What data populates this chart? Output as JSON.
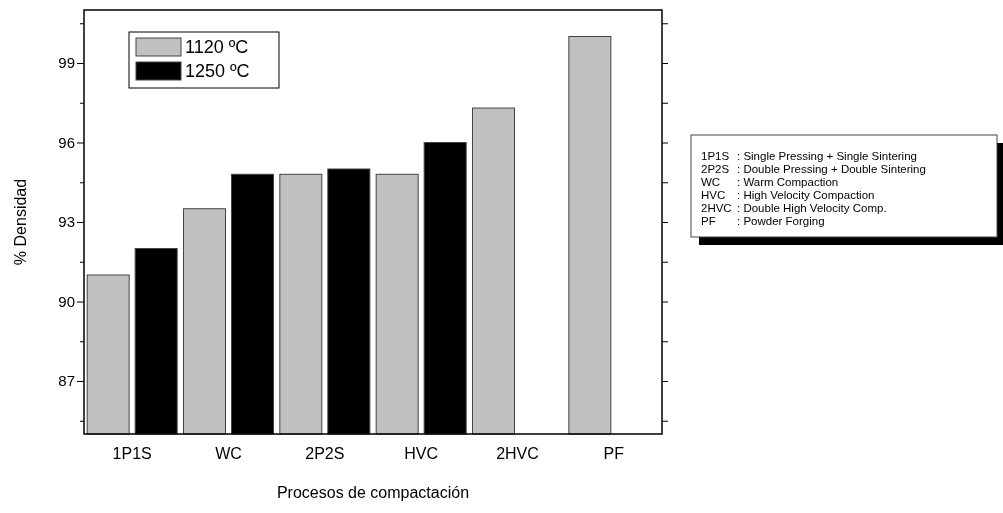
{
  "chart_data": {
    "type": "bar",
    "xlabel": "Procesos de compactación",
    "ylabel": "% Densidad",
    "categories": [
      "1P1S",
      "WC",
      "2P2S",
      "HVC",
      "2HVC",
      "PF"
    ],
    "series": [
      {
        "name": "1120 ºC",
        "color": "#c0c0c0",
        "values": [
          91.0,
          93.5,
          94.8,
          94.8,
          97.3,
          100.0
        ]
      },
      {
        "name": "1250 ºC",
        "color": "#000000",
        "values": [
          92.0,
          94.8,
          95.0,
          96.0,
          null,
          null
        ]
      }
    ],
    "ylim": [
      85,
      101
    ],
    "yticks": [
      {
        "value": 85.5,
        "label": null
      },
      87,
      {
        "value": 88.5,
        "label": null
      },
      90,
      {
        "value": 91.5,
        "label": null
      },
      93,
      {
        "value": 94.5,
        "label": null
      },
      96,
      {
        "value": 97.5,
        "label": null
      },
      99,
      {
        "value": 100.5,
        "label": null
      }
    ],
    "grid": false,
    "legend": "top left",
    "annotations": [
      "1P1S : Single Pressing + Single Sintering",
      "2P2S : Double Pressing + Double Sintering",
      "WC : Warm Compaction",
      "HVC : High Velocity Compaction",
      "2HVC : Double High Velocity Comp.",
      "PF : Powder Forging"
    ]
  }
}
